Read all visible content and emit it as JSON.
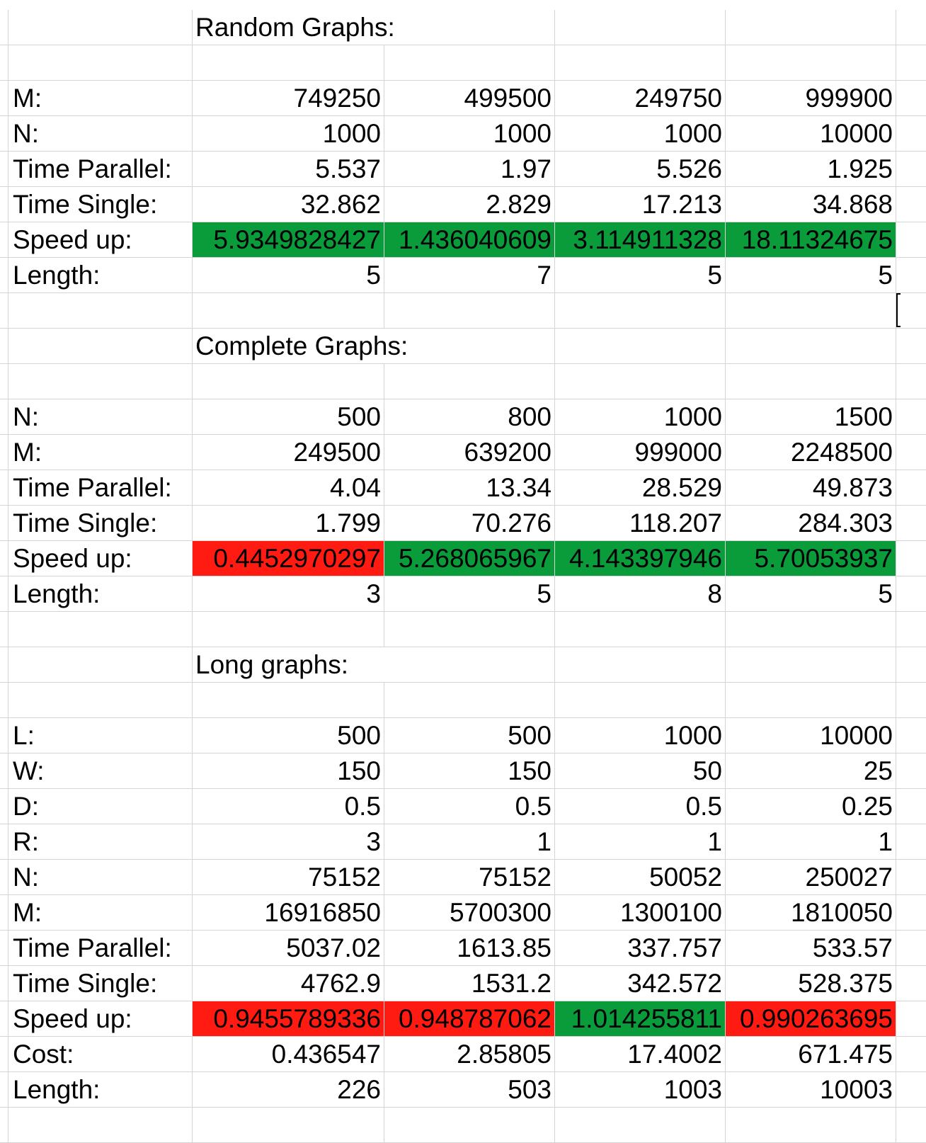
{
  "colors": {
    "positive": "#0a9b3a",
    "negative": "#ff1a12",
    "gridline": "#d4d4d4"
  },
  "sections": {
    "random": {
      "title": "Random Graphs:",
      "rows": {
        "m": {
          "label": "M:",
          "values": [
            "749250",
            "499500",
            "249750",
            "999900"
          ]
        },
        "n": {
          "label": "N:",
          "values": [
            "1000",
            "1000",
            "1000",
            "10000"
          ]
        },
        "time_parallel": {
          "label": "Time Parallel:",
          "values": [
            "5.537",
            "1.97",
            "5.526",
            "1.925"
          ]
        },
        "time_single": {
          "label": "Time Single:",
          "values": [
            "32.862",
            "2.829",
            "17.213",
            "34.868"
          ]
        },
        "speed_up": {
          "label": "Speed up:",
          "values": [
            "5.9349828427",
            "1.436040609",
            "3.114911328",
            "18.11324675"
          ],
          "status": [
            "positive",
            "positive",
            "positive",
            "positive"
          ]
        },
        "length": {
          "label": "Length:",
          "values": [
            "5",
            "7",
            "5",
            "5"
          ]
        }
      }
    },
    "complete": {
      "title": "Complete Graphs:",
      "rows": {
        "n": {
          "label": "N:",
          "values": [
            "500",
            "800",
            "1000",
            "1500"
          ]
        },
        "m": {
          "label": "M:",
          "values": [
            "249500",
            "639200",
            "999000",
            "2248500"
          ]
        },
        "time_parallel": {
          "label": "Time Parallel:",
          "values": [
            "4.04",
            "13.34",
            "28.529",
            "49.873"
          ]
        },
        "time_single": {
          "label": "Time Single:",
          "values": [
            "1.799",
            "70.276",
            "118.207",
            "284.303"
          ]
        },
        "speed_up": {
          "label": "Speed up:",
          "values": [
            "0.4452970297",
            "5.268065967",
            "4.143397946",
            "5.70053937"
          ],
          "status": [
            "negative",
            "positive",
            "positive",
            "positive"
          ]
        },
        "length": {
          "label": "Length:",
          "values": [
            "3",
            "5",
            "8",
            "5"
          ]
        }
      }
    },
    "long": {
      "title": "Long graphs:",
      "rows": {
        "l": {
          "label": "L:",
          "values": [
            "500",
            "500",
            "1000",
            "10000"
          ]
        },
        "w": {
          "label": "W:",
          "values": [
            "150",
            "150",
            "50",
            "25"
          ]
        },
        "d": {
          "label": "D:",
          "values": [
            "0.5",
            "0.5",
            "0.5",
            "0.25"
          ]
        },
        "r": {
          "label": "R:",
          "values": [
            "3",
            "1",
            "1",
            "1"
          ]
        },
        "n": {
          "label": "N:",
          "values": [
            "75152",
            "75152",
            "50052",
            "250027"
          ]
        },
        "m": {
          "label": "M:",
          "values": [
            "16916850",
            "5700300",
            "1300100",
            "1810050"
          ]
        },
        "time_parallel": {
          "label": "Time Parallel:",
          "values": [
            "5037.02",
            "1613.85",
            "337.757",
            "533.57"
          ]
        },
        "time_single": {
          "label": "Time Single:",
          "values": [
            "4762.9",
            "1531.2",
            "342.572",
            "528.375"
          ]
        },
        "speed_up": {
          "label": "Speed up:",
          "values": [
            "0.9455789336",
            "0.948787062",
            "1.014255811",
            "0.990263695"
          ],
          "status": [
            "negative",
            "negative",
            "positive",
            "negative"
          ]
        },
        "cost": {
          "label": "Cost:",
          "values": [
            "0.436547",
            "2.85805",
            "17.4002",
            "671.475"
          ]
        },
        "length": {
          "label": "Length:",
          "values": [
            "226",
            "503",
            "1003",
            "10003"
          ]
        }
      }
    }
  }
}
